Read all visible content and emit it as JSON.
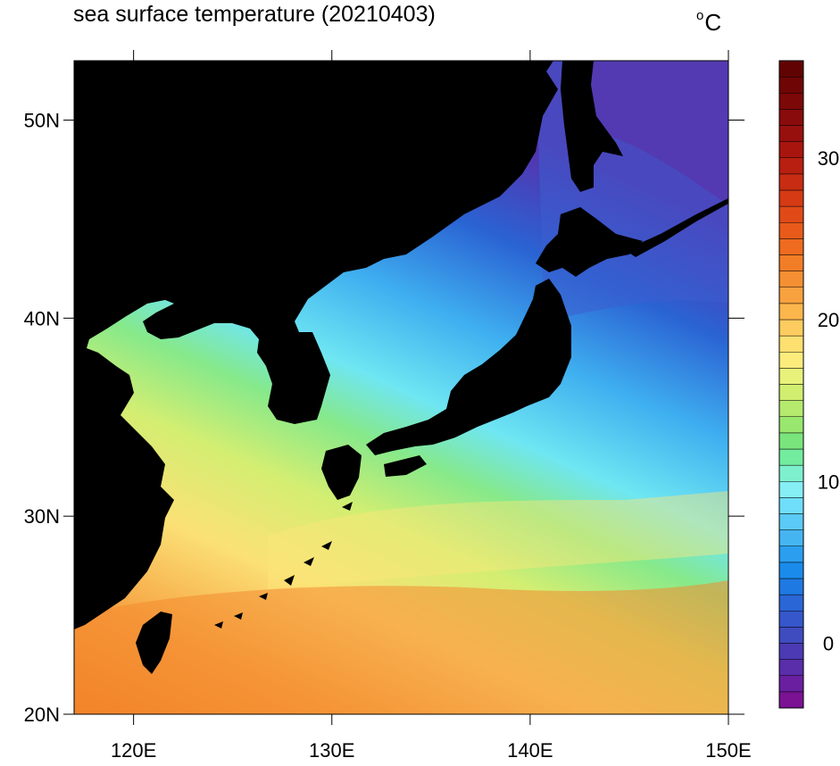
{
  "title": "sea surface temperature (20210403)",
  "units": {
    "degree": "o",
    "unit": "C"
  },
  "map": {
    "lon_range": [
      117,
      150
    ],
    "lat_range": [
      20,
      53
    ],
    "lon_ticks": [
      {
        "value": 120,
        "label": "120E"
      },
      {
        "value": 130,
        "label": "130E"
      },
      {
        "value": 140,
        "label": "140E"
      },
      {
        "value": 150,
        "label": "150E"
      }
    ],
    "lat_ticks": [
      {
        "value": 20,
        "label": "20N"
      },
      {
        "value": 30,
        "label": "30N"
      },
      {
        "value": 40,
        "label": "40N"
      },
      {
        "value": 50,
        "label": "50N"
      }
    ],
    "land_color": "#000000"
  },
  "colorbar": {
    "min": -4,
    "max": 36,
    "ticks": [
      {
        "value": 0,
        "label": "0"
      },
      {
        "value": 10,
        "label": "10"
      },
      {
        "value": 20,
        "label": "20"
      },
      {
        "value": 30,
        "label": "30"
      }
    ],
    "colors": [
      "#7a1293",
      "#6a1fa0",
      "#5a2daa",
      "#4b3ab4",
      "#3f4cc0",
      "#3557cb",
      "#2b66d6",
      "#1f79e2",
      "#1a8bea",
      "#2b9eef",
      "#45b5f2",
      "#5bcaf6",
      "#6fdefa",
      "#86eef5",
      "#7ef0cd",
      "#73ec9f",
      "#7ae57c",
      "#99e76e",
      "#b5ea6e",
      "#d1ee70",
      "#e8f27a",
      "#fbec7c",
      "#fde070",
      "#fdcc60",
      "#fbb64c",
      "#f8a13f",
      "#f58f33",
      "#f27d27",
      "#ee6b1f",
      "#e85a1a",
      "#e04a17",
      "#d53a14",
      "#c82c12",
      "#b81f10",
      "#a8150e",
      "#98100d",
      "#890b0c",
      "#7c0808",
      "#6f0505",
      "#620303"
    ]
  }
}
